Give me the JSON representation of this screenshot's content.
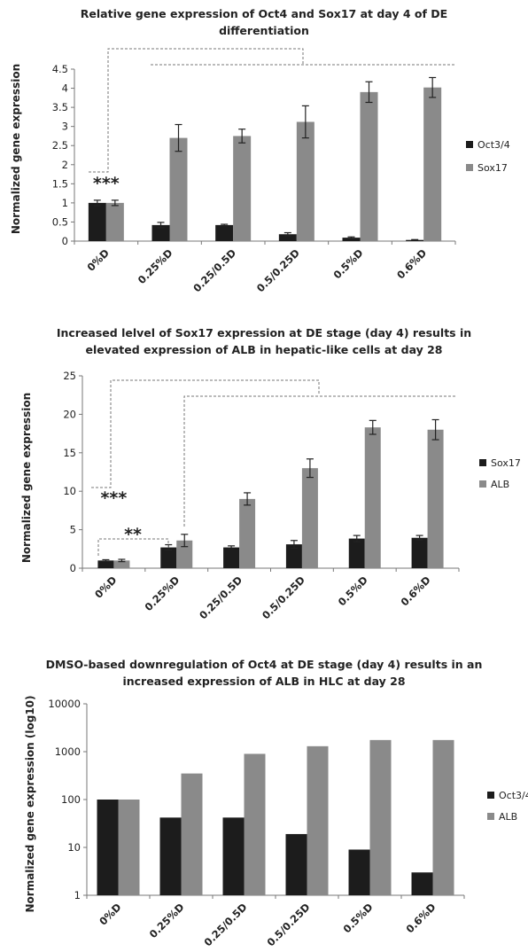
{
  "colors": {
    "dark": "#1c1c1c",
    "light": "#8a8a8a"
  },
  "chart_data": [
    {
      "type": "bar",
      "title_line1": "Relative gene expression of Oct4 and Sox17 at day 4 of DE",
      "title_line2": "differentiation",
      "ylabel": "Normalized gene expression",
      "categories": [
        "0%D",
        "0.25%D",
        "0.25/0.5D",
        "0.5/0.25D",
        "0.5%D",
        "0.6%D"
      ],
      "ylim": [
        0,
        4.5
      ],
      "yticks": [
        0,
        0.5,
        1,
        1.5,
        2,
        2.5,
        3,
        3.5,
        4,
        4.5
      ],
      "ytick_labels": [
        "0",
        "0.5",
        "1",
        "1.5",
        "2",
        "2.5",
        "3",
        "3.5",
        "4",
        "4.5"
      ],
      "log_scale": false,
      "series": [
        {
          "name": "Oct3/4",
          "values": [
            1.0,
            0.42,
            0.42,
            0.18,
            0.09,
            0.03
          ],
          "errors": [
            0.07,
            0.07,
            0.02,
            0.04,
            0.02,
            0.01
          ]
        },
        {
          "name": "Sox17",
          "values": [
            1.0,
            2.7,
            2.75,
            3.12,
            3.9,
            4.02
          ],
          "errors": [
            0.07,
            0.35,
            0.18,
            0.42,
            0.27,
            0.26
          ]
        }
      ],
      "significance": "***"
    },
    {
      "type": "bar",
      "title_line1": "Increased lelvel of Sox17 expression at DE stage (day 4) results in",
      "title_line2": "elevated expression of ALB in hepatic-like cells at day 28",
      "ylabel": "Normalized gene expression",
      "categories": [
        "0%D",
        "0.25%D",
        "0.25/0.5D",
        "0.5/0.25D",
        "0.5%D",
        "0.6%D"
      ],
      "ylim": [
        0,
        25
      ],
      "yticks": [
        0,
        5,
        10,
        15,
        20,
        25
      ],
      "ytick_labels": [
        "0",
        "5",
        "10",
        "15",
        "20",
        "25"
      ],
      "log_scale": false,
      "series": [
        {
          "name": "Sox17",
          "values": [
            1.0,
            2.7,
            2.7,
            3.1,
            3.85,
            3.95
          ],
          "errors": [
            0.1,
            0.35,
            0.2,
            0.5,
            0.4,
            0.3
          ]
        },
        {
          "name": "ALB",
          "values": [
            1.0,
            3.6,
            9.0,
            13.0,
            18.3,
            18.0
          ],
          "errors": [
            0.15,
            0.8,
            0.8,
            1.2,
            0.9,
            1.3
          ]
        }
      ],
      "significance_1": "***",
      "significance_2": "**"
    },
    {
      "type": "bar",
      "title_line1": "DMSO-based downregulation of Oct4 at DE stage (day 4) results in an",
      "title_line2": "increased expression of ALB in HLC at day 28",
      "ylabel": "Normalized gene expression (log10)",
      "categories": [
        "0%D",
        "0.25%D",
        "0.25/0.5D",
        "0.5/0.25D",
        "0.5%D",
        "0.6%D"
      ],
      "ylim": [
        1,
        10000
      ],
      "yticks": [
        1,
        10,
        100,
        1000,
        10000
      ],
      "ytick_labels": [
        "1",
        "10",
        "100",
        "1000",
        "10000"
      ],
      "log_scale": true,
      "series": [
        {
          "name": "Oct3/4",
          "values": [
            100,
            42,
            42,
            19,
            9,
            3
          ]
        },
        {
          "name": "ALB",
          "values": [
            100,
            350,
            900,
            1300,
            1750,
            1750
          ]
        }
      ]
    }
  ]
}
